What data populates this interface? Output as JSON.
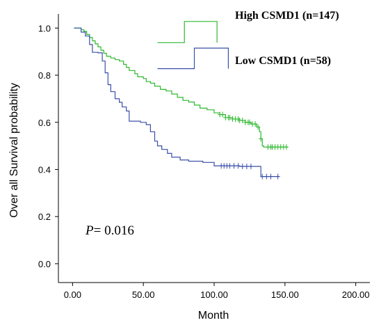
{
  "chart_data": {
    "type": "line",
    "subtype": "kaplan-meier",
    "xlabel": "Month",
    "ylabel": "Over all Survival probability",
    "xlim": [
      -10,
      210
    ],
    "ylim": [
      -0.08,
      1.06
    ],
    "x_ticks": [
      0,
      50,
      100,
      150,
      200
    ],
    "x_tick_labels": [
      "0.00",
      "50.00",
      "100.00",
      "150.00",
      "200.00"
    ],
    "y_ticks": [
      0.0,
      0.2,
      0.4,
      0.6,
      0.8,
      1.0
    ],
    "y_tick_labels": [
      "0.0",
      "0.2",
      "0.4",
      "0.6",
      "0.8",
      "1.0"
    ],
    "annotation": {
      "p_label": "P",
      "p_value": "= 0.016"
    },
    "series": [
      {
        "name": "High CSMD1 (n=147)",
        "color": "#2eb82e",
        "steps": [
          [
            1,
            1.0
          ],
          [
            6,
            0.993
          ],
          [
            8,
            0.986
          ],
          [
            10,
            0.973
          ],
          [
            12,
            0.96
          ],
          [
            14,
            0.946
          ],
          [
            16,
            0.933
          ],
          [
            18,
            0.92
          ],
          [
            20,
            0.906
          ],
          [
            22,
            0.893
          ],
          [
            24,
            0.88
          ],
          [
            27,
            0.873
          ],
          [
            30,
            0.866
          ],
          [
            33,
            0.86
          ],
          [
            36,
            0.846
          ],
          [
            38,
            0.833
          ],
          [
            40,
            0.82
          ],
          [
            44,
            0.806
          ],
          [
            46,
            0.793
          ],
          [
            50,
            0.786
          ],
          [
            52,
            0.773
          ],
          [
            55,
            0.766
          ],
          [
            58,
            0.753
          ],
          [
            62,
            0.74
          ],
          [
            66,
            0.733
          ],
          [
            70,
            0.72
          ],
          [
            74,
            0.706
          ],
          [
            78,
            0.693
          ],
          [
            82,
            0.686
          ],
          [
            86,
            0.673
          ],
          [
            90,
            0.66
          ],
          [
            95,
            0.653
          ],
          [
            100,
            0.64
          ],
          [
            104,
            0.633
          ],
          [
            108,
            0.62
          ],
          [
            113,
            0.614
          ],
          [
            118,
            0.608
          ],
          [
            122,
            0.6
          ],
          [
            126,
            0.593
          ],
          [
            130,
            0.58
          ],
          [
            132,
            0.56
          ],
          [
            133,
            0.53
          ],
          [
            134,
            0.5
          ],
          [
            135,
            0.495
          ],
          [
            152,
            0.495
          ]
        ],
        "censored_x": [
          104,
          106,
          108,
          110,
          111,
          113,
          115,
          117,
          118,
          120,
          122,
          124,
          125,
          127,
          129,
          131,
          133,
          138,
          140,
          141,
          143,
          145,
          147,
          149,
          151
        ],
        "legend_line": [
          [
            60,
            0.938
          ],
          [
            79,
            0.938
          ],
          [
            79,
            1.028
          ],
          [
            102,
            1.028
          ],
          [
            102,
            0.938
          ]
        ]
      },
      {
        "name": "Low CSMD1 (n=58)",
        "color": "#3a4fa8",
        "steps": [
          [
            1,
            1.0
          ],
          [
            6,
            0.983
          ],
          [
            9,
            0.966
          ],
          [
            12,
            0.93
          ],
          [
            14,
            0.897
          ],
          [
            18,
            0.895
          ],
          [
            21,
            0.86
          ],
          [
            23,
            0.81
          ],
          [
            25,
            0.76
          ],
          [
            27,
            0.73
          ],
          [
            30,
            0.7
          ],
          [
            33,
            0.685
          ],
          [
            35,
            0.665
          ],
          [
            38,
            0.648
          ],
          [
            40,
            0.605
          ],
          [
            48,
            0.6
          ],
          [
            52,
            0.59
          ],
          [
            55,
            0.56
          ],
          [
            58,
            0.52
          ],
          [
            60,
            0.5
          ],
          [
            63,
            0.485
          ],
          [
            67,
            0.468
          ],
          [
            70,
            0.452
          ],
          [
            76,
            0.44
          ],
          [
            82,
            0.435
          ],
          [
            92,
            0.43
          ],
          [
            100,
            0.415
          ],
          [
            118,
            0.413
          ],
          [
            132,
            0.413
          ],
          [
            133,
            0.37
          ],
          [
            146,
            0.37
          ]
        ],
        "censored_x": [
          105,
          107,
          109,
          111,
          114,
          117,
          120,
          123,
          126,
          134,
          137,
          140,
          145
        ],
        "legend_line": [
          [
            60,
            0.828
          ],
          [
            86,
            0.828
          ],
          [
            86,
            0.915
          ],
          [
            110,
            0.915
          ],
          [
            110,
            0.828
          ]
        ]
      }
    ]
  }
}
